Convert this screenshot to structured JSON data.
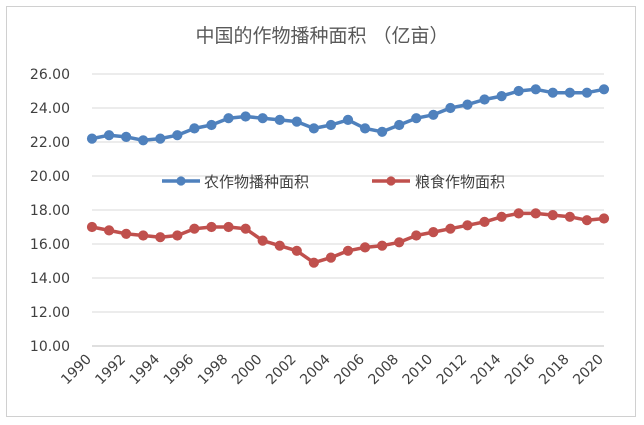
{
  "chart_data": {
    "type": "line",
    "title": "中国的作物播种面积 （亿亩）",
    "xlabel": "",
    "ylabel": "",
    "ylim": [
      10,
      26
    ],
    "yticks": [
      "10.00",
      "12.00",
      "14.00",
      "16.00",
      "18.00",
      "20.00",
      "22.00",
      "24.00",
      "26.00"
    ],
    "x": [
      1990,
      1991,
      1992,
      1993,
      1994,
      1995,
      1996,
      1997,
      1998,
      1999,
      2000,
      2001,
      2002,
      2003,
      2004,
      2005,
      2006,
      2007,
      2008,
      2009,
      2010,
      2011,
      2012,
      2013,
      2014,
      2015,
      2016,
      2017,
      2018,
      2019,
      2020
    ],
    "xticks": [
      "1990",
      "1992",
      "1994",
      "1996",
      "1998",
      "2000",
      "2002",
      "2004",
      "2006",
      "2008",
      "2010",
      "2012",
      "2014",
      "2016",
      "2018",
      "2020"
    ],
    "grid": true,
    "legend_position": "center",
    "series": [
      {
        "name": "农作物播种面积",
        "color": "#4f81bd",
        "values": [
          22.2,
          22.4,
          22.3,
          22.1,
          22.2,
          22.4,
          22.8,
          23.0,
          23.4,
          23.5,
          23.4,
          23.3,
          23.2,
          22.8,
          23.0,
          23.3,
          22.8,
          22.6,
          23.0,
          23.4,
          23.6,
          24.0,
          24.2,
          24.5,
          24.7,
          25.0,
          25.1,
          24.9,
          24.9,
          24.9,
          25.1
        ]
      },
      {
        "name": "粮食作物面积",
        "color": "#c0504d",
        "values": [
          17.0,
          16.8,
          16.6,
          16.5,
          16.4,
          16.5,
          16.9,
          17.0,
          17.0,
          16.9,
          16.2,
          15.9,
          15.6,
          14.9,
          15.2,
          15.6,
          15.8,
          15.9,
          16.1,
          16.5,
          16.7,
          16.9,
          17.1,
          17.3,
          17.6,
          17.8,
          17.8,
          17.7,
          17.6,
          17.4,
          17.5
        ]
      }
    ]
  }
}
